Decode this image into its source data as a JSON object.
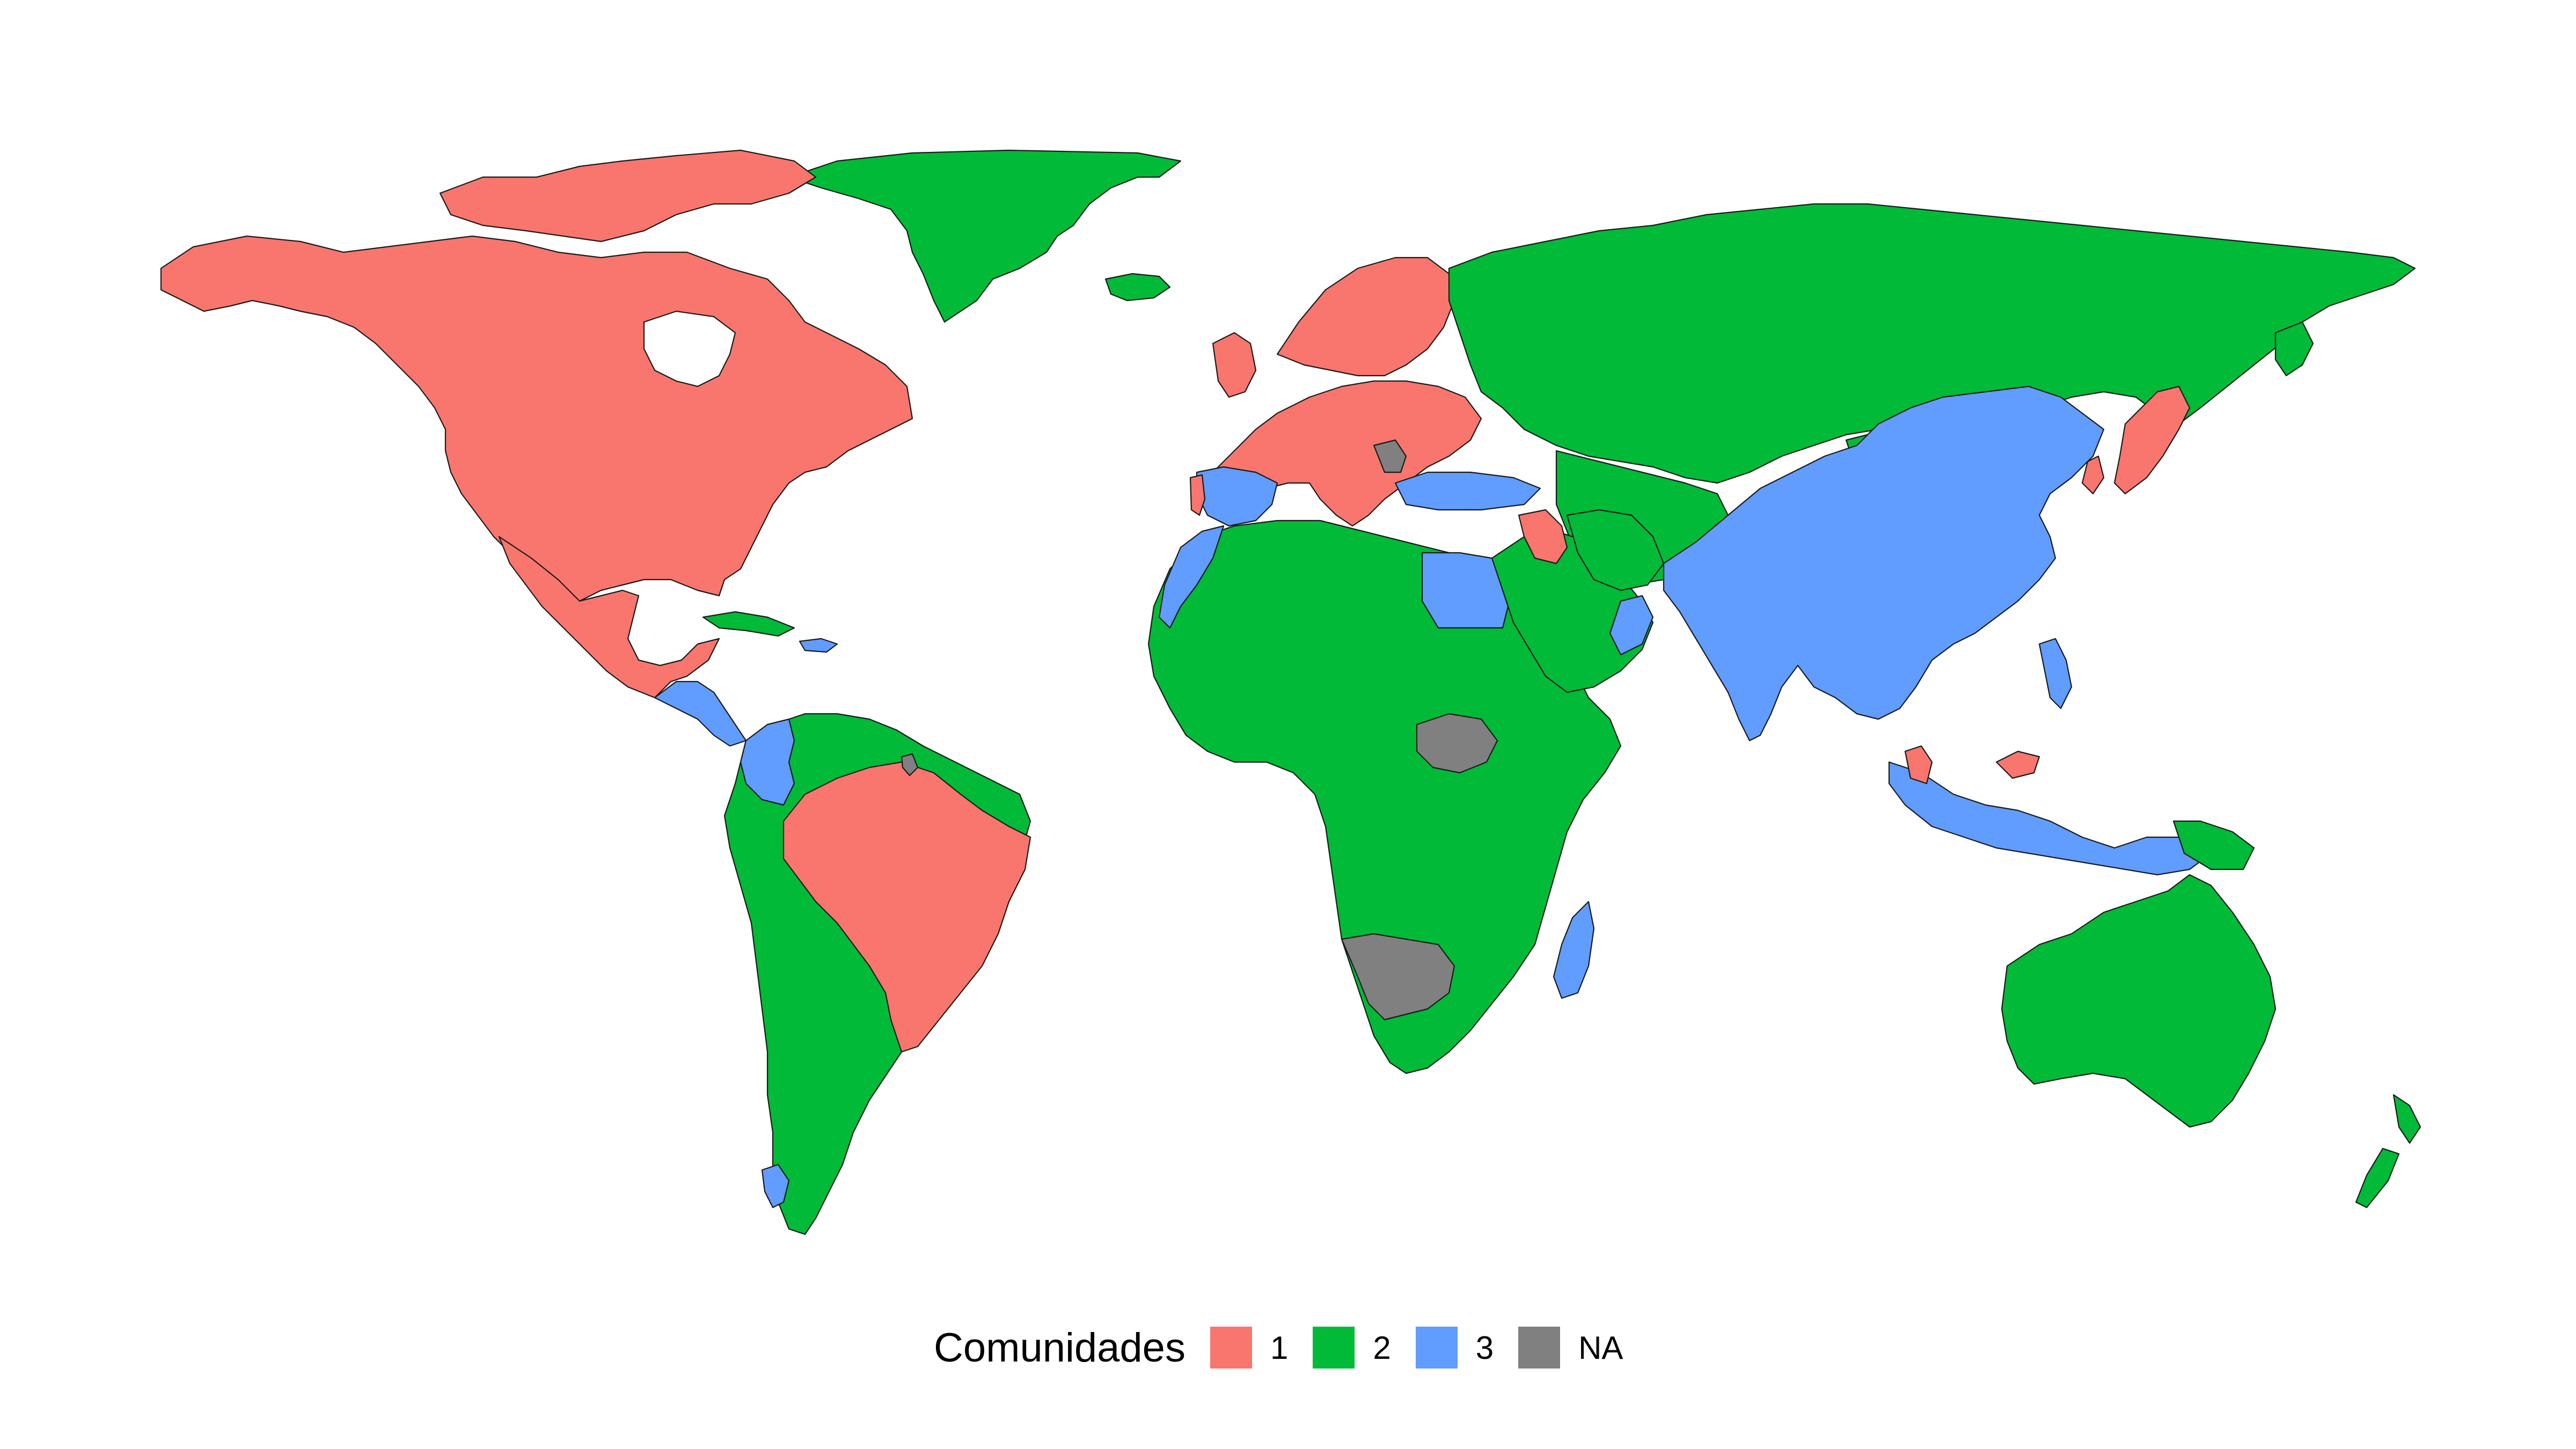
{
  "legend": {
    "title": "Comunidades",
    "items": [
      {
        "label": "1",
        "color": "#F8766D"
      },
      {
        "label": "2",
        "color": "#00BA38"
      },
      {
        "label": "3",
        "color": "#619CFF"
      },
      {
        "label": "NA",
        "color": "#808080"
      }
    ]
  },
  "map": {
    "projection": "equirectangular",
    "communities": {
      "1": [
        "Canada",
        "United States",
        "Mexico",
        "Guatemala",
        "Honduras",
        "Brazil",
        "Portugal",
        "France",
        "United Kingdom",
        "Ireland",
        "Germany",
        "Italy",
        "Poland",
        "Ukraine",
        "Sweden",
        "Norway",
        "Finland",
        "Iraq",
        "Japan",
        "South Korea",
        "Malaysia",
        "Philippines"
      ],
      "2": [
        "Greenland",
        "Iceland",
        "Cuba",
        "Venezuela",
        "Guyana",
        "Ecuador",
        "Peru",
        "Bolivia",
        "Chile",
        "Argentina",
        "Paraguay",
        "Uruguay",
        "Morocco",
        "Algeria",
        "Libya",
        "Nigeria",
        "Sudan",
        "Ethiopia",
        "DR Congo",
        "Angola",
        "Zambia",
        "Mozambique",
        "South Africa",
        "Saudi Arabia",
        "Iran",
        "Kazakhstan",
        "Russia",
        "Mongolia",
        "Australia",
        "New Zealand",
        "Papua New Guinea"
      ],
      "3": [
        "Colombia",
        "Panama",
        "Costa Rica",
        "Spain",
        "Greece",
        "Turkey",
        "Egypt",
        "Oman",
        "India",
        "China",
        "Myanmar",
        "Thailand",
        "Vietnam",
        "Indonesia",
        "Madagascar",
        "Western Sahara"
      ],
      "NA": [
        "South Sudan",
        "Namibia",
        "Botswana",
        "Serbia",
        "French Guiana"
      ]
    }
  }
}
